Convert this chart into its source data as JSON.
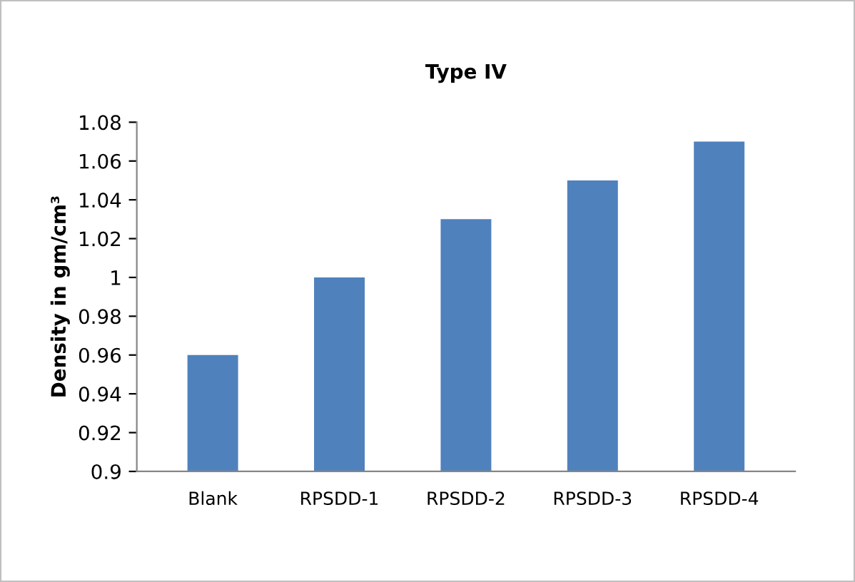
{
  "chart_data": {
    "type": "bar",
    "title": "Type IV",
    "ylabel": "Density in gm/cm³",
    "categories": [
      "Blank",
      "RPSDD-1",
      "RPSDD-2",
      "RPSDD-3",
      "RPSDD-4"
    ],
    "values": [
      0.96,
      1,
      1.03,
      1.05,
      1.07
    ],
    "color": "#4f81bd",
    "ylim": [
      0.9,
      1.08
    ],
    "yticks": [
      0.9,
      0.92,
      0.94,
      0.96,
      0.98,
      1,
      1.02,
      1.04,
      1.06,
      1.08
    ],
    "grid": false,
    "legend": false
  }
}
